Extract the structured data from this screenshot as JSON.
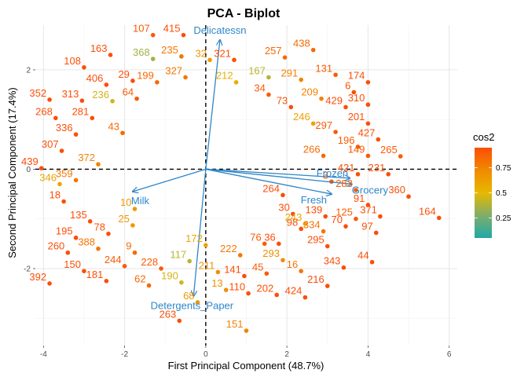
{
  "chart_data": {
    "type": "scatter",
    "title": "PCA - Biplot",
    "xlabel": "First Principal Component (48.7%)",
    "ylabel": "Second Principal Component (17.4%)",
    "xlim": [
      -4.2,
      6.2
    ],
    "ylim": [
      -3.55,
      2.9
    ],
    "x_ticks": [
      -4,
      -2,
      0,
      2,
      4,
      6
    ],
    "y_ticks": [
      -2,
      0,
      2
    ],
    "grid": true,
    "reference_lines": {
      "x": 0,
      "y": 0
    },
    "legend": {
      "title": "cos2",
      "placement": "right",
      "ticks": [
        0.75,
        0.5,
        0.25
      ],
      "range": [
        0.05,
        0.95
      ],
      "colors": [
        "#1fa8a8",
        "#7fae6a",
        "#e7b800",
        "#f08a00",
        "#fc4e07"
      ]
    },
    "variables": [
      {
        "name": "Delicatessn",
        "x": 0.35,
        "y": 2.6
      },
      {
        "name": "Frozen",
        "x": 3.55,
        "y": -0.18
      },
      {
        "name": "Grocery",
        "x": 3.6,
        "y": -0.3
      },
      {
        "name": "Fresh",
        "x": 3.1,
        "y": -0.5
      },
      {
        "name": "Milk",
        "x": -1.8,
        "y": -0.45
      },
      {
        "name": "Detergents_Paper",
        "x": -0.3,
        "y": -2.55
      }
    ],
    "labeled_points": [
      {
        "label": "107",
        "x": -1.3,
        "y": 2.7,
        "cos2": 0.9
      },
      {
        "label": "415",
        "x": -0.55,
        "y": 2.7,
        "cos2": 0.95
      },
      {
        "label": "438",
        "x": 2.65,
        "y": 2.4,
        "cos2": 0.85
      },
      {
        "label": "163",
        "x": -2.35,
        "y": 2.3,
        "cos2": 0.95
      },
      {
        "label": "368",
        "x": -1.3,
        "y": 2.22,
        "cos2": 0.35
      },
      {
        "label": "235",
        "x": -0.6,
        "y": 2.27,
        "cos2": 0.8
      },
      {
        "label": "32",
        "x": 0.1,
        "y": 2.2,
        "cos2": 0.65
      },
      {
        "label": "321",
        "x": 0.7,
        "y": 2.2,
        "cos2": 0.95
      },
      {
        "label": "257",
        "x": 1.95,
        "y": 2.25,
        "cos2": 0.85
      },
      {
        "label": "108",
        "x": -3.0,
        "y": 2.05,
        "cos2": 0.95
      },
      {
        "label": "29",
        "x": -1.8,
        "y": 1.78,
        "cos2": 0.95
      },
      {
        "label": "199",
        "x": -1.2,
        "y": 1.75,
        "cos2": 0.85
      },
      {
        "label": "327",
        "x": -0.5,
        "y": 1.85,
        "cos2": 0.8
      },
      {
        "label": "212",
        "x": 0.75,
        "y": 1.75,
        "cos2": 0.55
      },
      {
        "label": "167",
        "x": 1.55,
        "y": 1.85,
        "cos2": 0.4
      },
      {
        "label": "291",
        "x": 2.35,
        "y": 1.8,
        "cos2": 0.75
      },
      {
        "label": "131",
        "x": 3.2,
        "y": 1.9,
        "cos2": 0.9
      },
      {
        "label": "174",
        "x": 4.0,
        "y": 1.75,
        "cos2": 0.95
      },
      {
        "label": "406",
        "x": -2.45,
        "y": 1.7,
        "cos2": 0.95
      },
      {
        "label": "6",
        "x": 3.65,
        "y": 1.55,
        "cos2": 0.95
      },
      {
        "label": "352",
        "x": -3.85,
        "y": 1.4,
        "cos2": 0.95
      },
      {
        "label": "313",
        "x": -3.05,
        "y": 1.38,
        "cos2": 0.95
      },
      {
        "label": "236",
        "x": -2.3,
        "y": 1.37,
        "cos2": 0.45
      },
      {
        "label": "64",
        "x": -1.7,
        "y": 1.42,
        "cos2": 0.9
      },
      {
        "label": "34",
        "x": 1.55,
        "y": 1.5,
        "cos2": 0.9
      },
      {
        "label": "209",
        "x": 2.85,
        "y": 1.42,
        "cos2": 0.75
      },
      {
        "label": "310",
        "x": 4.0,
        "y": 1.3,
        "cos2": 0.95
      },
      {
        "label": "73",
        "x": 2.1,
        "y": 1.25,
        "cos2": 0.95
      },
      {
        "label": "429",
        "x": 3.45,
        "y": 1.25,
        "cos2": 0.95
      },
      {
        "label": "268",
        "x": -3.7,
        "y": 1.03,
        "cos2": 0.95
      },
      {
        "label": "281",
        "x": -2.8,
        "y": 1.03,
        "cos2": 0.95
      },
      {
        "label": "201",
        "x": 4.0,
        "y": 0.92,
        "cos2": 0.95
      },
      {
        "label": "246",
        "x": 2.65,
        "y": 0.92,
        "cos2": 0.6
      },
      {
        "label": "336",
        "x": -3.2,
        "y": 0.7,
        "cos2": 0.95
      },
      {
        "label": "43",
        "x": -2.05,
        "y": 0.73,
        "cos2": 0.85
      },
      {
        "label": "297",
        "x": 3.2,
        "y": 0.75,
        "cos2": 0.9
      },
      {
        "label": "427",
        "x": 4.25,
        "y": 0.6,
        "cos2": 0.95
      },
      {
        "label": "196",
        "x": 3.75,
        "y": 0.45,
        "cos2": 0.9
      },
      {
        "label": "307",
        "x": -3.55,
        "y": 0.37,
        "cos2": 0.95
      },
      {
        "label": "266",
        "x": 2.9,
        "y": 0.27,
        "cos2": 0.85
      },
      {
        "label": "149",
        "x": 4.0,
        "y": 0.27,
        "cos2": 0.9
      },
      {
        "label": "265",
        "x": 4.8,
        "y": 0.26,
        "cos2": 0.9
      },
      {
        "label": "372",
        "x": -2.65,
        "y": 0.1,
        "cos2": 0.75
      },
      {
        "label": "439",
        "x": -4.05,
        "y": 0.02,
        "cos2": 0.95
      },
      {
        "label": "421",
        "x": 3.75,
        "y": -0.1,
        "cos2": 0.95
      },
      {
        "label": "231",
        "x": 4.5,
        "y": -0.1,
        "cos2": 0.95
      },
      {
        "label": "3",
        "x": 3.1,
        "y": -0.25,
        "cos2": 0.9
      },
      {
        "label": "359",
        "x": -3.2,
        "y": -0.22,
        "cos2": 0.8
      },
      {
        "label": "346",
        "x": -3.6,
        "y": -0.3,
        "cos2": 0.6
      },
      {
        "label": "283",
        "x": 3.7,
        "y": -0.42,
        "cos2": 0.9
      },
      {
        "label": "264",
        "x": 1.9,
        "y": -0.52,
        "cos2": 0.95
      },
      {
        "label": "360",
        "x": 5.0,
        "y": -0.55,
        "cos2": 0.95
      },
      {
        "label": "18",
        "x": -3.5,
        "y": -0.65,
        "cos2": 0.95
      },
      {
        "label": "10",
        "x": -1.75,
        "y": -0.8,
        "cos2": 0.65
      },
      {
        "label": "91",
        "x": 4.0,
        "y": -0.72,
        "cos2": 0.95
      },
      {
        "label": "30",
        "x": 2.15,
        "y": -0.9,
        "cos2": 0.95
      },
      {
        "label": "139",
        "x": 2.95,
        "y": -0.95,
        "cos2": 0.95
      },
      {
        "label": "371",
        "x": 4.3,
        "y": -0.95,
        "cos2": 0.95
      },
      {
        "label": "164",
        "x": 5.75,
        "y": -0.98,
        "cos2": 0.95
      },
      {
        "label": "135",
        "x": -2.85,
        "y": -1.05,
        "cos2": 0.95
      },
      {
        "label": "125",
        "x": 3.7,
        "y": -1.0,
        "cos2": 0.9
      },
      {
        "label": "25",
        "x": -1.8,
        "y": -1.13,
        "cos2": 0.65
      },
      {
        "label": "98",
        "x": 2.35,
        "y": -1.2,
        "cos2": 0.95
      },
      {
        "label": "334",
        "x": 2.9,
        "y": -1.25,
        "cos2": 0.8
      },
      {
        "label": "70",
        "x": 3.45,
        "y": -1.15,
        "cos2": 0.95
      },
      {
        "label": "97",
        "x": 4.2,
        "y": -1.28,
        "cos2": 0.95
      },
      {
        "label": "243",
        "x": 2.45,
        "y": -1.1,
        "cos2": 0.6
      },
      {
        "label": "78",
        "x": -2.4,
        "y": -1.3,
        "cos2": 0.95
      },
      {
        "label": "195",
        "x": -3.2,
        "y": -1.38,
        "cos2": 0.95
      },
      {
        "label": "76",
        "x": 1.45,
        "y": -1.5,
        "cos2": 0.9
      },
      {
        "label": "36",
        "x": 1.8,
        "y": -1.5,
        "cos2": 0.95
      },
      {
        "label": "295",
        "x": 3.0,
        "y": -1.55,
        "cos2": 0.95
      },
      {
        "label": "388",
        "x": -2.65,
        "y": -1.6,
        "cos2": 0.8
      },
      {
        "label": "172",
        "x": 0.0,
        "y": -1.53,
        "cos2": 0.6
      },
      {
        "label": "9",
        "x": -1.75,
        "y": -1.68,
        "cos2": 0.85
      },
      {
        "label": "260",
        "x": -3.4,
        "y": -1.68,
        "cos2": 0.95
      },
      {
        "label": "222",
        "x": 0.85,
        "y": -1.73,
        "cos2": 0.8
      },
      {
        "label": "293",
        "x": 1.9,
        "y": -1.83,
        "cos2": 0.7
      },
      {
        "label": "117",
        "x": -0.4,
        "y": -1.85,
        "cos2": 0.4
      },
      {
        "label": "44",
        "x": 4.1,
        "y": -1.87,
        "cos2": 0.95
      },
      {
        "label": "244",
        "x": -2.0,
        "y": -1.95,
        "cos2": 0.9
      },
      {
        "label": "150",
        "x": -3.0,
        "y": -2.05,
        "cos2": 0.95
      },
      {
        "label": "228",
        "x": -1.1,
        "y": -2.0,
        "cos2": 0.9
      },
      {
        "label": "343",
        "x": 3.4,
        "y": -1.98,
        "cos2": 0.95
      },
      {
        "label": "16",
        "x": 2.35,
        "y": -2.05,
        "cos2": 0.8
      },
      {
        "label": "211",
        "x": 0.3,
        "y": -2.07,
        "cos2": 0.7
      },
      {
        "label": "141",
        "x": 0.95,
        "y": -2.15,
        "cos2": 0.95
      },
      {
        "label": "45",
        "x": 1.5,
        "y": -2.1,
        "cos2": 0.9
      },
      {
        "label": "392",
        "x": -3.85,
        "y": -2.3,
        "cos2": 0.95
      },
      {
        "label": "181",
        "x": -2.45,
        "y": -2.25,
        "cos2": 0.95
      },
      {
        "label": "190",
        "x": -0.6,
        "y": -2.28,
        "cos2": 0.45
      },
      {
        "label": "216",
        "x": 3.0,
        "y": -2.35,
        "cos2": 0.95
      },
      {
        "label": "62",
        "x": -1.4,
        "y": -2.34,
        "cos2": 0.85
      },
      {
        "label": "13",
        "x": 0.5,
        "y": -2.43,
        "cos2": 0.7
      },
      {
        "label": "110",
        "x": 1.05,
        "y": -2.5,
        "cos2": 0.95
      },
      {
        "label": "202",
        "x": 1.75,
        "y": -2.53,
        "cos2": 0.95
      },
      {
        "label": "424",
        "x": 2.45,
        "y": -2.58,
        "cos2": 0.95
      },
      {
        "label": "68",
        "x": -0.2,
        "y": -2.68,
        "cos2": 0.65
      },
      {
        "label": "263",
        "x": -0.65,
        "y": -3.05,
        "cos2": 0.95
      },
      {
        "label": "151",
        "x": 1.0,
        "y": -3.25,
        "cos2": 0.75
      }
    ]
  }
}
